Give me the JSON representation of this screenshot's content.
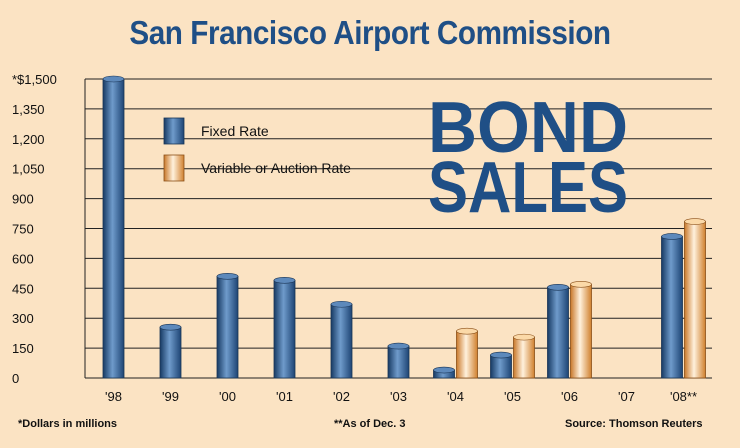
{
  "chart_data": {
    "type": "bar",
    "title": "San Francisco Airport Commission",
    "subtitle_line1": "BOND",
    "subtitle_line2": "SALES",
    "categories": [
      "'98",
      "'99",
      "'00",
      "'01",
      "'02",
      "'03",
      "'04",
      "'05",
      "'06",
      "'07",
      "'08**"
    ],
    "series": [
      {
        "name": "Fixed Rate",
        "color": "#2d5a8c",
        "values": [
          1500,
          255,
          510,
          490,
          370,
          160,
          40,
          115,
          455,
          0,
          710
        ]
      },
      {
        "name": "Variable or Auction Rate",
        "color": "#f0a34a",
        "values": [
          0,
          0,
          0,
          0,
          0,
          0,
          235,
          205,
          470,
          0,
          785
        ]
      }
    ],
    "yticks": [
      "*$1,500",
      "1,350",
      "1,200",
      "1,050",
      "900",
      "750",
      "600",
      "450",
      "300",
      "150",
      "0"
    ],
    "ylim": [
      0,
      1500
    ],
    "xlabel": "",
    "ylabel": "",
    "grid": true,
    "legend_position": "top-left"
  },
  "footnotes": {
    "left": "*Dollars in millions",
    "middle": "**As of Dec. 3",
    "right": "Source: Thomson Reuters"
  }
}
